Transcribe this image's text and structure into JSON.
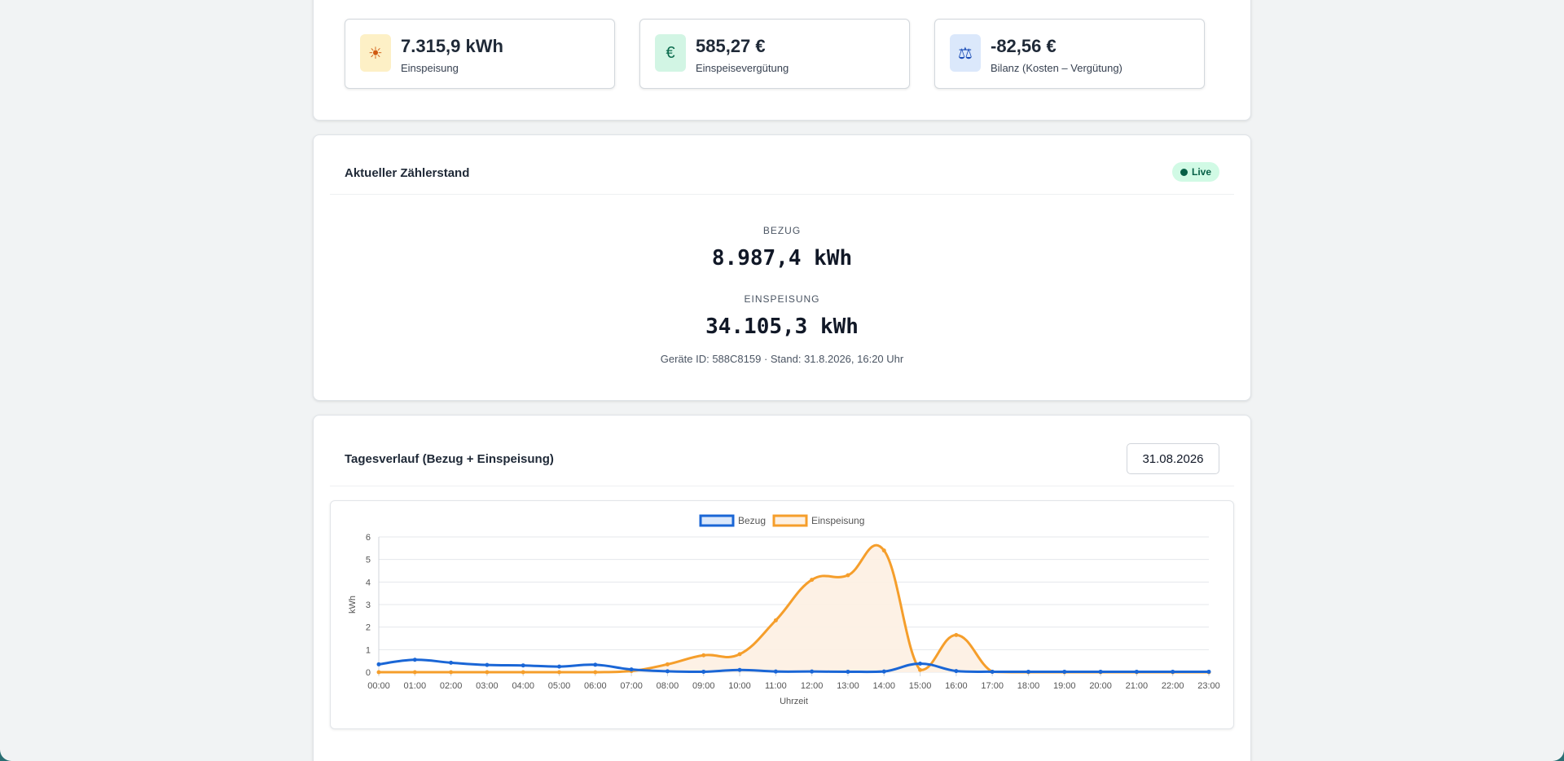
{
  "summary": {
    "cards": [
      {
        "icon": "sun-icon",
        "glyph": "☀",
        "value": "7.315,9 kWh",
        "label": "Einspeisung",
        "icon_bg": "#fdf0c6",
        "icon_color": "#d05a12"
      },
      {
        "icon": "euro-icon",
        "glyph": "€",
        "value": "585,27 €",
        "label": "Einspeisevergütung",
        "icon_bg": "#d2f5e4",
        "icon_color": "#0b6b4d"
      },
      {
        "icon": "balance-scale-icon",
        "glyph": "⚖",
        "value": "-82,56 €",
        "label": "Bilanz (Kosten – Vergütung)",
        "icon_bg": "#dbe8fb",
        "icon_color": "#1d4fb8"
      }
    ]
  },
  "meter": {
    "title": "Aktueller Zählerstand",
    "live_label": "Live",
    "bezug_label": "BEZUG",
    "bezug_value": "8.987,4 kWh",
    "einspeisung_label": "EINSPEISUNG",
    "einspeisung_value": "34.105,3 kWh",
    "meta": "Geräte ID: 588C8159 · Stand: 31.8.2026, 16:20 Uhr"
  },
  "daily": {
    "title": "Tagesverlauf (Bezug + Einspeisung)",
    "date_value": "31.08.2026"
  },
  "chart_data": {
    "type": "line",
    "xlabel": "Uhrzeit",
    "ylabel": "kWh",
    "ylim": [
      0,
      6
    ],
    "yticks": [
      0,
      1,
      2,
      3,
      4,
      5,
      6
    ],
    "grid": true,
    "legend": "top-center",
    "categories": [
      "00:00",
      "01:00",
      "02:00",
      "03:00",
      "04:00",
      "05:00",
      "06:00",
      "07:00",
      "08:00",
      "09:00",
      "10:00",
      "11:00",
      "12:00",
      "13:00",
      "14:00",
      "15:00",
      "16:00",
      "17:00",
      "18:00",
      "19:00",
      "20:00",
      "21:00",
      "22:00",
      "23:00"
    ],
    "series": [
      {
        "name": "Bezug",
        "color": "#1a66d6",
        "fill": "none",
        "values": [
          0.35,
          0.55,
          0.42,
          0.32,
          0.3,
          0.25,
          0.33,
          0.12,
          0.04,
          0.02,
          0.1,
          0.03,
          0.03,
          0.02,
          0.03,
          0.38,
          0.05,
          0.02,
          0.02,
          0.02,
          0.02,
          0.02,
          0.02,
          0.02
        ]
      },
      {
        "name": "Einspeisung",
        "color": "#f59e2b",
        "fill": "#fdf0e2",
        "values": [
          0,
          0,
          0,
          0,
          0,
          0,
          0,
          0.05,
          0.35,
          0.75,
          0.8,
          2.3,
          4.1,
          4.3,
          5.4,
          0.1,
          1.65,
          0.02,
          0,
          0,
          0,
          0,
          0,
          0
        ]
      }
    ]
  }
}
